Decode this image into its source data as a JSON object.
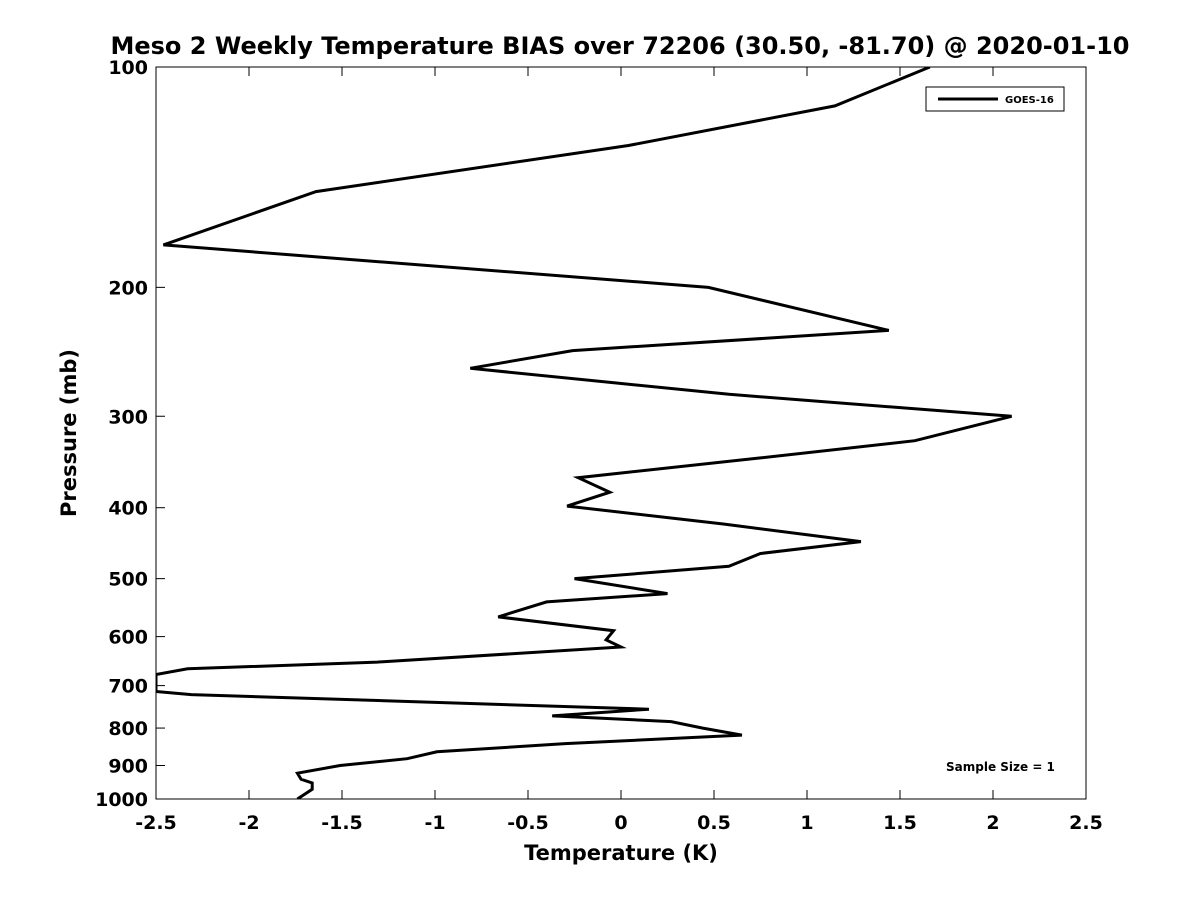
{
  "chart_data": {
    "type": "line",
    "title": "Meso 2 Weekly Temperature BIAS over 72206 (30.50, -81.70) @ 2020-01-10",
    "xlabel": "Temperature (K)",
    "ylabel": "Pressure (mb)",
    "xlim": [
      -2.5,
      2.5
    ],
    "ylim": [
      100,
      1000
    ],
    "yscale": "log",
    "y_reversed": true,
    "x_ticks": [
      -2.5,
      -2,
      -1.5,
      -1,
      -0.5,
      0,
      0.5,
      1,
      1.5,
      2,
      2.5
    ],
    "x_tick_labels": [
      "-2.5",
      "-2",
      "-1.5",
      "-1",
      "-0.5",
      "0",
      "0.5",
      "1",
      "1.5",
      "2",
      "2.5"
    ],
    "y_ticks": [
      100,
      200,
      300,
      400,
      500,
      600,
      700,
      800,
      900,
      1000
    ],
    "y_tick_labels": [
      "100",
      "200",
      "300",
      "400",
      "500",
      "600",
      "700",
      "800",
      "900",
      "1000"
    ],
    "grid": false,
    "legend_position": "top-right",
    "annotation": "Sample Size = 1",
    "series": [
      {
        "name": "GOES-16",
        "color": "#000000",
        "points": [
          [
            1.66,
            100
          ],
          [
            1.15,
            113
          ],
          [
            0.04,
            128
          ],
          [
            -1.64,
            148
          ],
          [
            -2.46,
            175
          ],
          [
            0.47,
            200
          ],
          [
            1.44,
            229
          ],
          [
            -0.26,
            244
          ],
          [
            -0.81,
            258
          ],
          [
            0.58,
            280
          ],
          [
            2.1,
            300
          ],
          [
            1.58,
            324
          ],
          [
            0.75,
            342
          ],
          [
            -0.23,
            364
          ],
          [
            -0.06,
            381
          ],
          [
            -0.29,
            398
          ],
          [
            0.55,
            421
          ],
          [
            1.29,
            445
          ],
          [
            0.75,
            462
          ],
          [
            0.58,
            481
          ],
          [
            -0.25,
            500
          ],
          [
            0.25,
            524
          ],
          [
            -0.4,
            538
          ],
          [
            -0.66,
            564
          ],
          [
            -0.04,
            589
          ],
          [
            -0.08,
            606
          ],
          [
            0.0,
            620
          ],
          [
            -1.31,
            650
          ],
          [
            -2.33,
            664
          ],
          [
            -2.5,
            676
          ],
          [
            -2.5,
            713
          ],
          [
            -2.31,
            720
          ],
          [
            0.15,
            754
          ],
          [
            -0.37,
            770
          ],
          [
            0.27,
            784
          ],
          [
            0.44,
            800
          ],
          [
            0.65,
            818
          ],
          [
            -0.3,
            840
          ],
          [
            -0.99,
            862
          ],
          [
            -1.15,
            881
          ],
          [
            -1.51,
            900
          ],
          [
            -1.74,
            922
          ],
          [
            -1.72,
            940
          ],
          [
            -1.66,
            951
          ],
          [
            -1.66,
            970
          ],
          [
            -1.74,
            1000
          ]
        ]
      }
    ]
  }
}
